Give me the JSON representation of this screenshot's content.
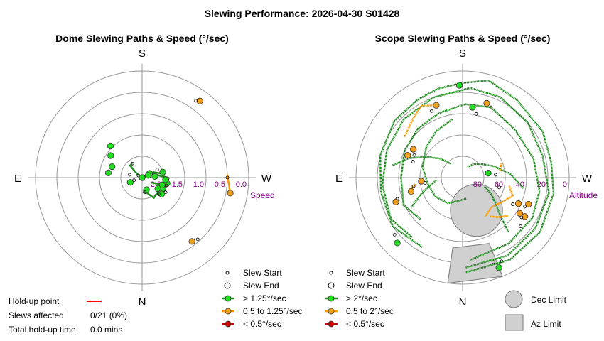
{
  "title": "Slewing Performance: 2026-04-30 S01428",
  "colors": {
    "fast": "#1e8c1e",
    "fast_marker": "#22dd22",
    "medium": "#ff9900",
    "medium_marker": "#f0a020",
    "slow": "#cc0000",
    "limit_fill": "#d0d0d0",
    "ring": "#999999",
    "label_purple": "#800080"
  },
  "chart_data": [
    {
      "type": "polar",
      "title": "Dome Slewing Paths & Speed (°/sec)",
      "directions": {
        "top": "S",
        "bottom": "N",
        "left": "E",
        "right": "W"
      },
      "radial_axis": {
        "label": "Speed",
        "ticks": [
          "2.0",
          "1.5",
          "1.0",
          "0.5",
          "0.0"
        ],
        "range": [
          2.5,
          0.0
        ]
      },
      "paths": [
        {
          "category": "fast",
          "points": [
            [
              182,
              3.0
            ],
            [
              200,
              3.2
            ],
            [
              230,
              3.0
            ],
            [
              262,
              2.6
            ],
            [
              285,
              2.6
            ],
            [
              310,
              2.8
            ],
            [
              340,
              2.9
            ],
            [
              10,
              3.0
            ],
            [
              40,
              3.1
            ],
            [
              70,
              3.0
            ],
            [
              95,
              2.5
            ],
            [
              130,
              2.5
            ],
            [
              160,
              2.7
            ]
          ]
        },
        {
          "category": "fast",
          "points": [
            [
              60,
              2.3
            ],
            [
              90,
              1.9
            ],
            [
              120,
              2.0
            ],
            [
              150,
              1.95
            ],
            [
              175,
              2.2
            ]
          ]
        },
        {
          "category": "fast",
          "points": [
            [
              55,
              2.6
            ],
            [
              65,
              2.2
            ],
            [
              80,
              2.0
            ],
            [
              108,
              1.9
            ],
            [
              118,
              2.25
            ]
          ]
        },
        {
          "category": "fast",
          "points": [
            [
              300,
              2.4
            ],
            [
              315,
              2.1
            ],
            [
              325,
              2.1
            ]
          ]
        },
        {
          "category": "medium",
          "points": [
            [
              88,
              0.5
            ],
            [
              100,
              0.4
            ]
          ]
        },
        {
          "category": "medium",
          "points": [
            [
              37,
              0.25
            ],
            [
              38,
              0.25
            ]
          ]
        },
        {
          "category": "medium",
          "points": [
            [
              142,
              0.6
            ],
            [
              140,
              0.55
            ]
          ]
        }
      ],
      "markers": [
        {
          "az": 37,
          "r": 0.25,
          "kind": "end",
          "category": "medium"
        },
        {
          "az": 35,
          "r": 0.3,
          "kind": "start"
        },
        {
          "az": 100,
          "r": 0.4,
          "kind": "end",
          "category": "medium"
        },
        {
          "az": 90,
          "r": 0.5,
          "kind": "start"
        },
        {
          "az": 142,
          "r": 0.6,
          "kind": "end",
          "category": "medium"
        },
        {
          "az": 138,
          "r": 0.55,
          "kind": "start"
        },
        {
          "az": 305,
          "r": 1.6,
          "kind": "end",
          "category": "fast"
        },
        {
          "az": 300,
          "r": 2.4,
          "kind": "start"
        },
        {
          "az": 315,
          "r": 1.45,
          "kind": "end",
          "category": "fast"
        },
        {
          "az": 325,
          "r": 2.1,
          "kind": "start"
        },
        {
          "az": 278,
          "r": 1.7,
          "kind": "end",
          "category": "fast"
        },
        {
          "az": 283,
          "r": 2.2,
          "kind": "start"
        },
        {
          "az": 290,
          "r": 1.75,
          "kind": "end",
          "category": "fast"
        },
        {
          "az": 248,
          "r": 2.2,
          "kind": "end",
          "category": "fast"
        },
        {
          "az": 252,
          "r": 2.3,
          "kind": "start"
        },
        {
          "az": 60,
          "r": 2.3,
          "kind": "end",
          "category": "fast"
        },
        {
          "az": 62,
          "r": 2.1,
          "kind": "start"
        },
        {
          "az": 70,
          "r": 2.35,
          "kind": "end",
          "category": "fast"
        },
        {
          "az": 85,
          "r": 2.2,
          "kind": "end",
          "category": "fast"
        },
        {
          "az": 92,
          "r": 1.9,
          "kind": "start"
        },
        {
          "az": 103,
          "r": 1.9,
          "kind": "end",
          "category": "fast"
        },
        {
          "az": 108,
          "r": 1.9,
          "kind": "start"
        },
        {
          "az": 118,
          "r": 1.95,
          "kind": "end",
          "category": "fast"
        },
        {
          "az": 122,
          "r": 1.85,
          "kind": "start"
        },
        {
          "az": 130,
          "r": 1.9,
          "kind": "end",
          "category": "fast"
        },
        {
          "az": 135,
          "r": 1.95,
          "kind": "start"
        },
        {
          "az": 160,
          "r": 2.2,
          "kind": "end",
          "category": "fast"
        },
        {
          "az": 170,
          "r": 2.15,
          "kind": "start"
        },
        {
          "az": 55,
          "r": 2.6,
          "kind": "end",
          "category": "fast"
        },
        {
          "az": 75,
          "r": 2.0,
          "kind": "end",
          "category": "fast"
        },
        {
          "az": 95,
          "r": 1.95,
          "kind": "end",
          "category": "fast"
        },
        {
          "az": 110,
          "r": 2.0,
          "kind": "end",
          "category": "fast"
        },
        {
          "az": 125,
          "r": 2.05,
          "kind": "end",
          "category": "fast"
        }
      ]
    },
    {
      "type": "polar",
      "title": "Scope Slewing Paths & Speed (°/sec)",
      "directions": {
        "top": "S",
        "bottom": "N",
        "left": "E",
        "right": "W"
      },
      "radial_axis": {
        "label": "Altitude",
        "ticks": [
          "80",
          "60",
          "40",
          "20",
          "0"
        ],
        "range": [
          90,
          0
        ]
      },
      "dec_limit_circle": {
        "az": 157,
        "alt": 60,
        "radius_deg": 22
      },
      "az_limit_wedge": {
        "az_from": 158,
        "az_to": 188,
        "alt_inner": 30,
        "alt_outer": 0
      },
      "paths": [
        {
          "category": "fast",
          "points": [
            [
              178,
              10
            ],
            [
              150,
              10
            ],
            [
              125,
              10
            ],
            [
              100,
              12
            ],
            [
              80,
              14
            ],
            [
              60,
              12
            ],
            [
              35,
              10
            ],
            [
              15,
              5
            ],
            [
              0,
              10
            ],
            [
              -15,
              12
            ],
            [
              -30,
              14
            ],
            [
              -50,
              15
            ],
            [
              -75,
              18
            ],
            [
              -100,
              20
            ],
            [
              -125,
              18
            ],
            [
              -150,
              22
            ]
          ]
        },
        {
          "category": "fast",
          "points": [
            [
              178,
              14
            ],
            [
              150,
              14
            ],
            [
              125,
              15
            ],
            [
              100,
              16
            ],
            [
              75,
              20
            ],
            [
              50,
              18
            ],
            [
              25,
              15
            ],
            [
              5,
              14
            ],
            [
              -20,
              18
            ],
            [
              -45,
              20
            ],
            [
              -70,
              22
            ],
            [
              -95,
              22
            ],
            [
              -120,
              20
            ],
            [
              -140,
              24
            ]
          ]
        },
        {
          "category": "fast",
          "points": [
            [
              175,
              20
            ],
            [
              145,
              22
            ],
            [
              120,
              22
            ],
            [
              100,
              24
            ],
            [
              75,
              28
            ],
            [
              48,
              30
            ],
            [
              22,
              26
            ],
            [
              2,
              28
            ],
            [
              -20,
              32
            ],
            [
              -42,
              34
            ],
            [
              -65,
              36
            ],
            [
              -90,
              38
            ],
            [
              -115,
              35
            ],
            [
              -135,
              40
            ]
          ]
        },
        {
          "category": "fast",
          "points": [
            [
              -10,
              40
            ],
            [
              -30,
              45
            ],
            [
              -50,
              50
            ],
            [
              -75,
              55
            ],
            [
              -100,
              60
            ],
            [
              -125,
              62
            ],
            [
              -150,
              65
            ],
            [
              -170,
              70
            ],
            [
              170,
              72
            ]
          ]
        },
        {
          "category": "fast",
          "points": [
            [
              100,
              38
            ],
            [
              85,
              50
            ],
            [
              70,
              62
            ],
            [
              55,
              70
            ],
            [
              40,
              75
            ],
            [
              25,
              80
            ]
          ]
        },
        {
          "category": "fast",
          "points": [
            [
              -80,
              30
            ],
            [
              -70,
              42
            ],
            [
              -60,
              55
            ],
            [
              -50,
              65
            ],
            [
              -40,
              75
            ]
          ]
        },
        {
          "category": "fast",
          "points": [
            [
              140,
              30
            ],
            [
              135,
              45
            ],
            [
              128,
              55
            ],
            [
              120,
              62
            ],
            [
              112,
              70
            ]
          ]
        },
        {
          "category": "fast",
          "points": [
            [
              -120,
              40
            ],
            [
              -112,
              52
            ],
            [
              -105,
              60
            ],
            [
              -95,
              68
            ]
          ]
        },
        {
          "category": "medium",
          "points": [
            [
              -20,
              25
            ],
            [
              -30,
              20
            ],
            [
              -40,
              25
            ],
            [
              -55,
              30
            ]
          ]
        },
        {
          "category": "medium",
          "points": [
            [
              100,
              50
            ],
            [
              110,
              45
            ],
            [
              120,
              50
            ],
            [
              135,
              55
            ],
            [
              150,
              52
            ]
          ]
        },
        {
          "category": "medium",
          "points": [
            [
              130,
              40
            ],
            [
              138,
              45
            ],
            [
              145,
              50
            ]
          ]
        },
        {
          "category": "medium",
          "points": [
            [
              -102,
              45
            ],
            [
              -98,
              50
            ]
          ]
        },
        {
          "category": "medium",
          "points": [
            [
              70,
              55
            ],
            [
              80,
              58
            ]
          ]
        }
      ],
      "markers": [
        {
          "az": -2,
          "alt": 12,
          "kind": "end",
          "category": "fast"
        },
        {
          "az": 18,
          "alt": 24,
          "kind": "end",
          "category": "medium"
        },
        {
          "az": 22,
          "alt": 26,
          "kind": "start"
        },
        {
          "az": 8,
          "alt": 30,
          "kind": "end",
          "category": "fast"
        },
        {
          "az": 12,
          "alt": 35,
          "kind": "start"
        },
        {
          "az": -20,
          "alt": 25,
          "kind": "end",
          "category": "medium"
        },
        {
          "az": -25,
          "alt": 28,
          "kind": "start"
        },
        {
          "az": -60,
          "alt": 42,
          "kind": "end",
          "category": "medium"
        },
        {
          "az": -65,
          "alt": 45,
          "kind": "start"
        },
        {
          "az": -68,
          "alt": 40,
          "kind": "end",
          "category": "medium"
        },
        {
          "az": -72,
          "alt": 46,
          "kind": "start"
        },
        {
          "az": -135,
          "alt": 12,
          "kind": "end",
          "category": "fast"
        },
        {
          "az": -130,
          "alt": 15,
          "kind": "start"
        },
        {
          "az": 80,
          "alt": 68,
          "kind": "end",
          "category": "fast"
        },
        {
          "az": 85,
          "alt": 62,
          "kind": "start"
        },
        {
          "az": 105,
          "alt": 58,
          "kind": "start"
        },
        {
          "az": 115,
          "alt": 38,
          "kind": "end",
          "category": "medium"
        },
        {
          "az": 118,
          "alt": 42,
          "kind": "start"
        },
        {
          "az": 112,
          "alt": 30,
          "kind": "end",
          "category": "medium"
        },
        {
          "az": 115,
          "alt": 32,
          "kind": "start"
        },
        {
          "az": 122,
          "alt": 28,
          "kind": "end",
          "category": "medium"
        },
        {
          "az": 124,
          "alt": 30,
          "kind": "start"
        },
        {
          "az": 130,
          "alt": 26,
          "kind": "start"
        },
        {
          "az": 158,
          "alt": 8,
          "kind": "end",
          "category": "fast"
        },
        {
          "az": 155,
          "alt": 12,
          "kind": "start"
        },
        {
          "az": 160,
          "alt": 14,
          "kind": "start"
        },
        {
          "az": 122,
          "alt": 33,
          "kind": "end",
          "category": "medium"
        },
        {
          "az": -95,
          "alt": 55,
          "kind": "end",
          "category": "medium"
        },
        {
          "az": -98,
          "alt": 58,
          "kind": "start"
        },
        {
          "az": -105,
          "alt": 45,
          "kind": "end",
          "category": "medium"
        },
        {
          "az": -100,
          "alt": 48,
          "kind": "start"
        },
        {
          "az": -110,
          "alt": 30,
          "kind": "end",
          "category": "medium"
        },
        {
          "az": -108,
          "alt": 32,
          "kind": "start"
        }
      ]
    }
  ],
  "legend_left": {
    "slew_start": "Slew Start",
    "slew_end": "Slew End",
    "fast": "> 1.25°/sec",
    "medium": "0.5 to 1.25°/sec",
    "slow": "< 0.5°/sec"
  },
  "legend_right": {
    "slew_start": "Slew Start",
    "slew_end": "Slew End",
    "fast": "> 2°/sec",
    "medium": "0.5 to 2°/sec",
    "slow": "< 0.5°/sec"
  },
  "limits_legend": {
    "dec": "Dec Limit",
    "az": "Az Limit"
  },
  "stats": {
    "holdup_label": "Hold-up point",
    "slews_label": "Slews affected",
    "slews_value": "0/21 (0%)",
    "total_label": "Total hold-up time",
    "total_value": "0.0 mins"
  }
}
